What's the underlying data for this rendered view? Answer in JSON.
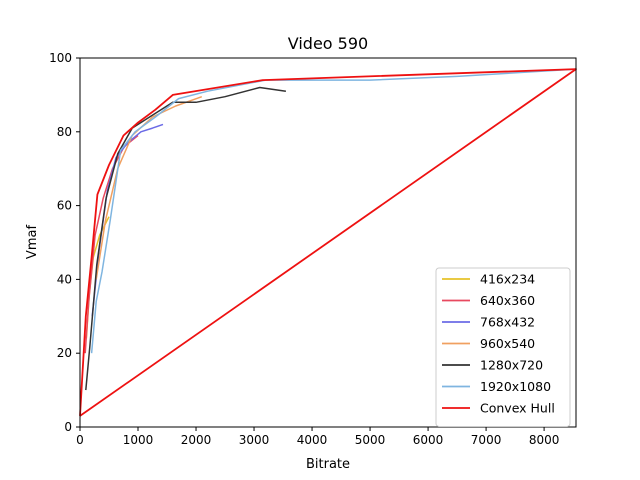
{
  "chart_data": {
    "type": "line",
    "title": "Video 590",
    "xlabel": "Bitrate",
    "ylabel": "Vmaf",
    "xlim": [
      0,
      8550
    ],
    "ylim": [
      0,
      100
    ],
    "x_ticks": [
      0,
      1000,
      2000,
      3000,
      4000,
      5000,
      6000,
      7000,
      8000
    ],
    "y_ticks": [
      0,
      20,
      40,
      60,
      80,
      100
    ],
    "grid": false,
    "legend_position": "bottom-right",
    "series": [
      {
        "name": "416x234",
        "color": "#e6c229",
        "points": [
          [
            110,
            24
          ],
          [
            160,
            36
          ],
          [
            230,
            46
          ],
          [
            340,
            52
          ],
          [
            500,
            57
          ]
        ]
      },
      {
        "name": "640x360",
        "color": "#e8495f",
        "points": [
          [
            90,
            20
          ],
          [
            150,
            34
          ],
          [
            260,
            52
          ],
          [
            400,
            62
          ],
          [
            560,
            70
          ],
          [
            760,
            76
          ],
          [
            1000,
            79
          ]
        ]
      },
      {
        "name": "768x432",
        "color": "#6b6be6",
        "points": [
          [
            210,
            30
          ],
          [
            330,
            48
          ],
          [
            470,
            64
          ],
          [
            620,
            73
          ],
          [
            820,
            77
          ],
          [
            1050,
            80
          ],
          [
            1250,
            81
          ],
          [
            1430,
            82
          ]
        ]
      },
      {
        "name": "960x540",
        "color": "#f0a060",
        "points": [
          [
            280,
            40
          ],
          [
            440,
            56
          ],
          [
            650,
            70
          ],
          [
            900,
            79
          ],
          [
            1250,
            84
          ],
          [
            1650,
            87
          ],
          [
            2100,
            89.5
          ]
        ]
      },
      {
        "name": "1280x720",
        "color": "#333333",
        "points": [
          [
            100,
            10
          ],
          [
            170,
            22
          ],
          [
            290,
            44
          ],
          [
            450,
            62
          ],
          [
            650,
            74
          ],
          [
            900,
            81
          ],
          [
            1200,
            84
          ],
          [
            1600,
            88
          ],
          [
            2000,
            88
          ],
          [
            2500,
            89.5
          ],
          [
            3100,
            92
          ],
          [
            3550,
            91
          ]
        ]
      },
      {
        "name": "1920x1080",
        "color": "#7fb5e0",
        "points": [
          [
            200,
            20
          ],
          [
            280,
            34
          ],
          [
            380,
            42
          ],
          [
            520,
            56
          ],
          [
            700,
            75
          ],
          [
            950,
            80
          ],
          [
            1300,
            84
          ],
          [
            1700,
            89
          ],
          [
            2200,
            91
          ],
          [
            3200,
            94
          ],
          [
            5000,
            94
          ],
          [
            6500,
            95
          ],
          [
            8550,
            97
          ]
        ]
      },
      {
        "name": "Convex Hull",
        "color": "#ee1111",
        "points": [
          [
            0,
            3
          ],
          [
            100,
            30
          ],
          [
            200,
            46
          ],
          [
            300,
            63
          ],
          [
            500,
            71
          ],
          [
            750,
            79
          ],
          [
            1000,
            82.5
          ],
          [
            1300,
            86
          ],
          [
            1600,
            90
          ],
          [
            3150,
            94
          ],
          [
            8550,
            97
          ],
          [
            0,
            3
          ]
        ]
      }
    ]
  }
}
